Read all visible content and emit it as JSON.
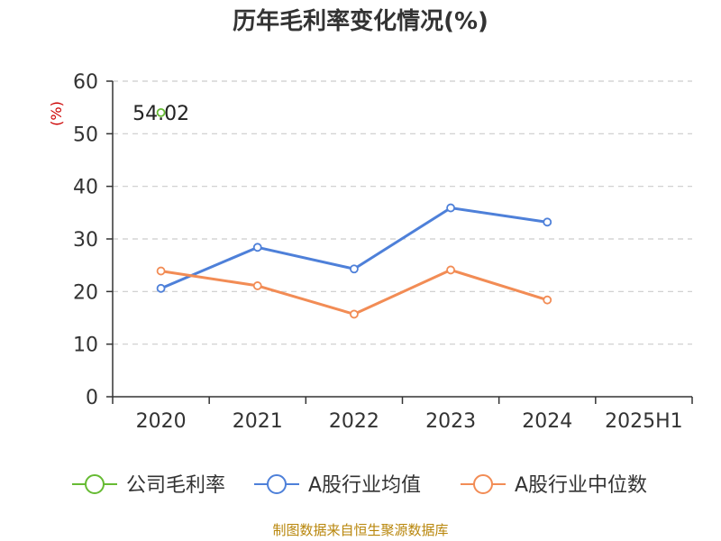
{
  "chart_data": {
    "type": "line",
    "title": "历年毛利率变化情况(%)",
    "ylabel": "(%)",
    "categories": [
      "2020",
      "2021",
      "2022",
      "2023",
      "2024",
      "2025H1"
    ],
    "ylim": [
      0,
      60
    ],
    "yticks": [
      0,
      10,
      20,
      30,
      40,
      50,
      60
    ],
    "grid": "horizontal-dashed",
    "legend_position": "bottom",
    "series": [
      {
        "name": "公司毛利率",
        "color": "#66bb33",
        "values": [
          54.02,
          null,
          null,
          null,
          null,
          null
        ]
      },
      {
        "name": "A股行业均值",
        "color": "#4e80d9",
        "values": [
          20.6,
          28.4,
          24.3,
          35.9,
          33.2,
          null
        ]
      },
      {
        "name": "A股行业中位数",
        "color": "#f28c55",
        "values": [
          23.9,
          21.1,
          15.7,
          24.1,
          18.4,
          null
        ]
      }
    ],
    "annotations": [
      {
        "series": 0,
        "index": 0,
        "text": "54.02"
      }
    ]
  },
  "source": "制图数据来自恒生聚源数据库"
}
